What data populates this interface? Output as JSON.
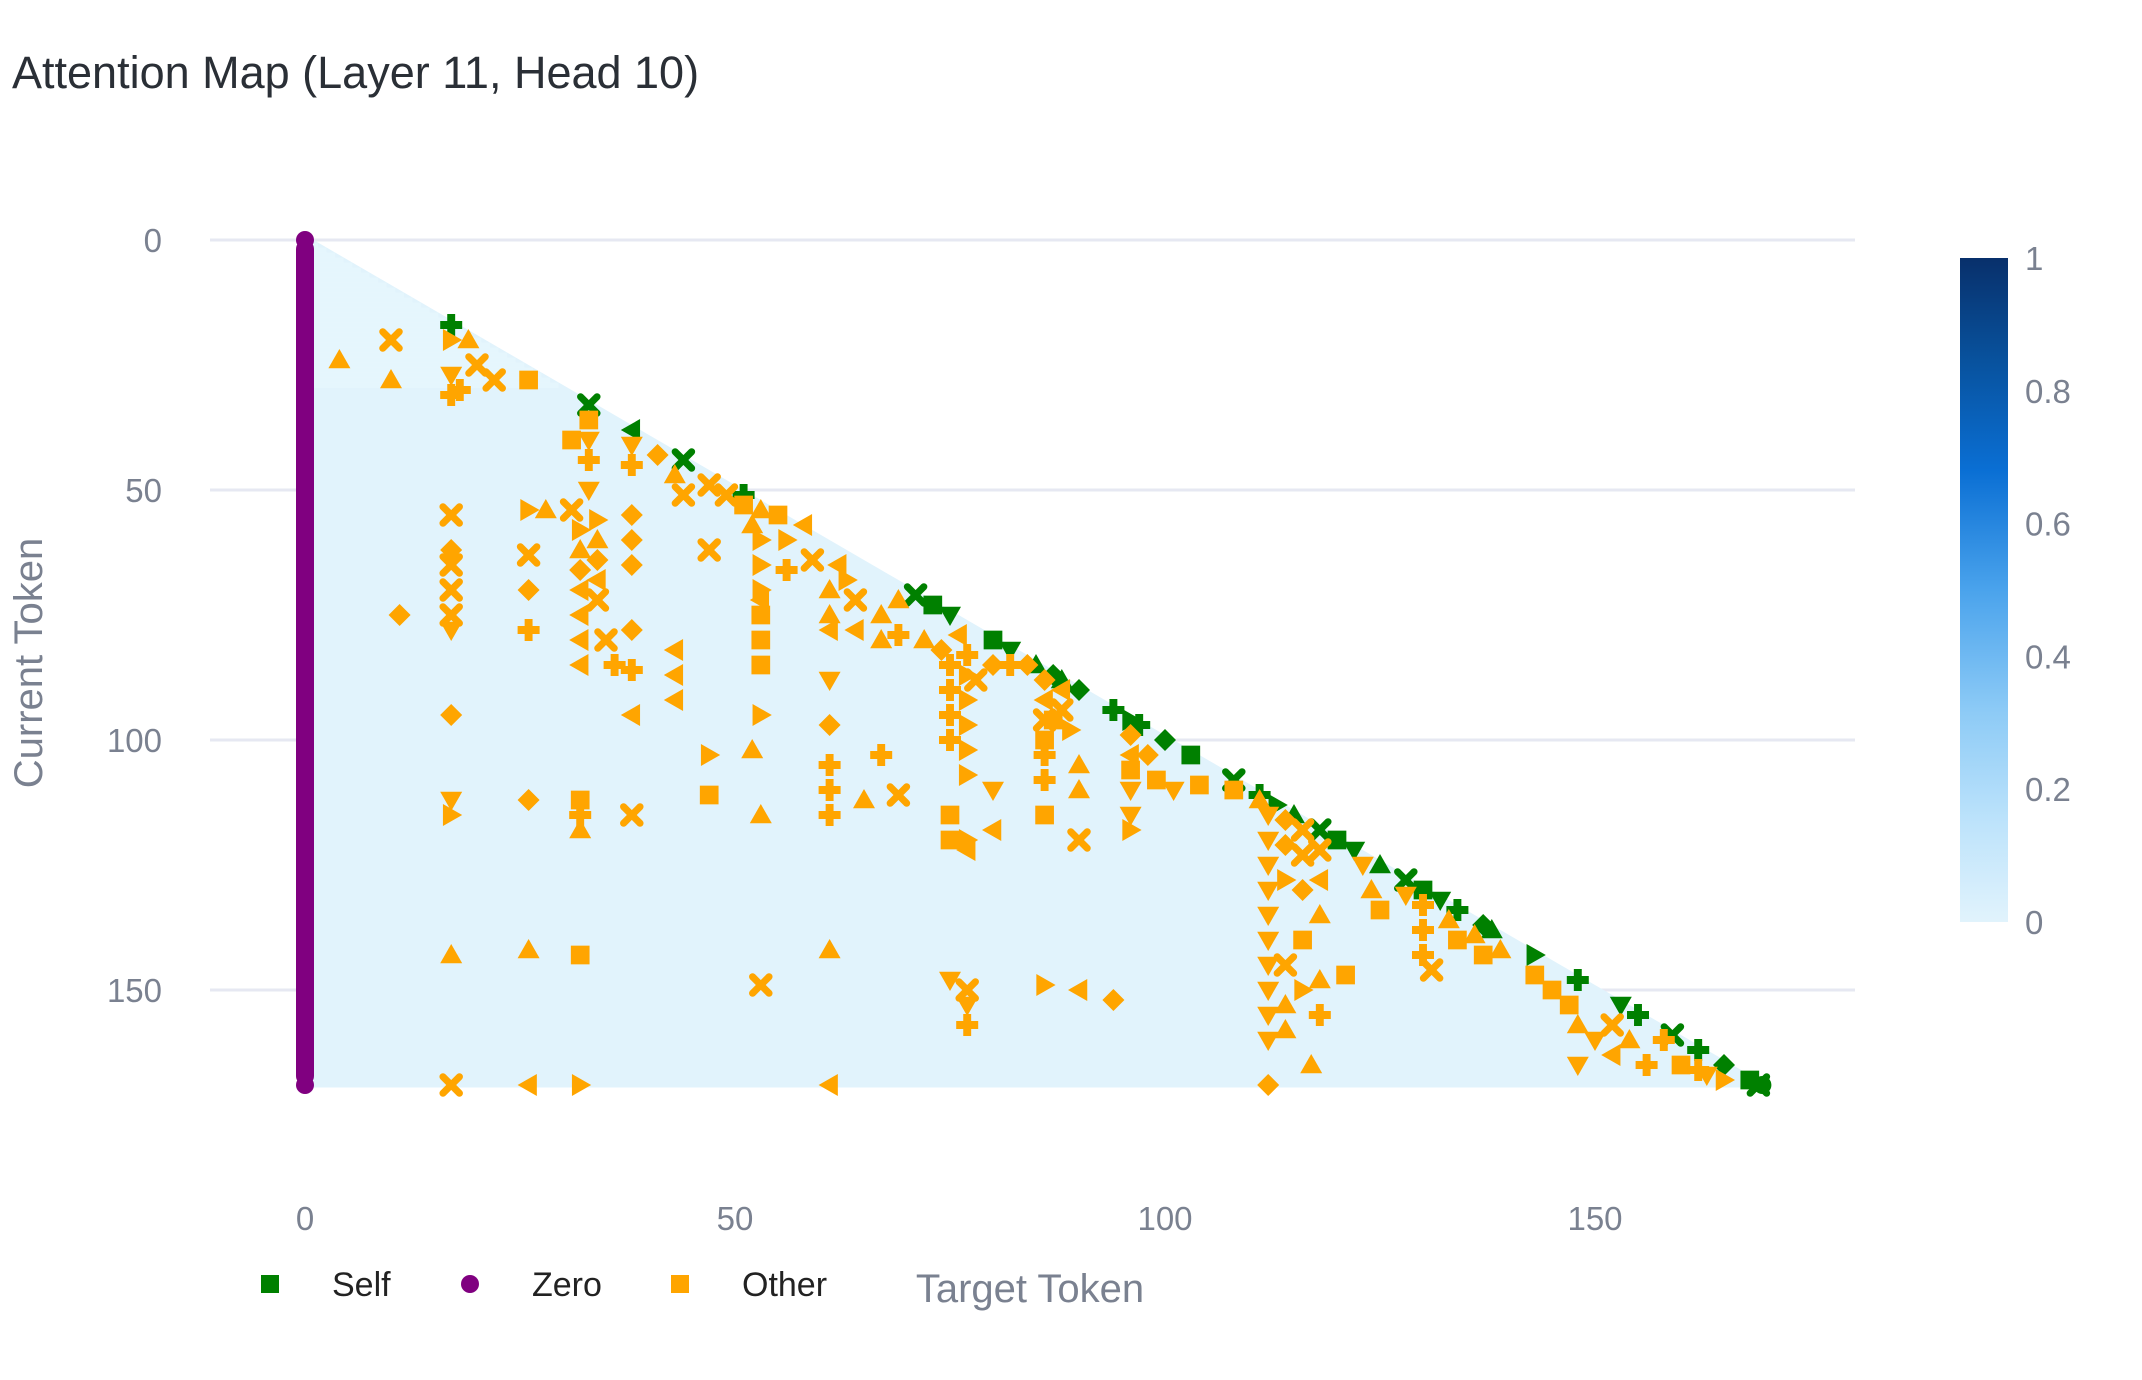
{
  "chart_data": {
    "type": "heatmap",
    "title": "Attention Map (Layer 11, Head 10)",
    "xlabel": "Target Token",
    "ylabel": "Current Token",
    "xlim": [
      -10,
      180
    ],
    "ylim": [
      0,
      170
    ],
    "y_reversed": true,
    "x_ticks": [
      0,
      50,
      100,
      150
    ],
    "y_ticks": [
      0,
      50,
      100,
      150
    ],
    "n_tokens": 170,
    "heatmap_mask": "lower-triangular",
    "colorscale": [
      "#e1f3fc",
      "#bde3fb",
      "#8ccaf6",
      "#4aa3ec",
      "#0a6fd4",
      "#08519c",
      "#08306b"
    ],
    "colorbar": {
      "min": 0,
      "max": 1,
      "ticks": [
        0,
        0.2,
        0.4,
        0.6,
        0.8,
        1
      ]
    },
    "grid": true,
    "legend_position": "bottom-left",
    "series": [
      {
        "name": "Self",
        "color": "#008000",
        "points": [
          [
            17,
            17
          ],
          [
            33,
            33
          ],
          [
            38,
            38
          ],
          [
            44,
            44
          ],
          [
            51,
            51
          ],
          [
            71,
            71
          ],
          [
            73,
            73
          ],
          [
            75,
            75
          ],
          [
            80,
            80
          ],
          [
            82,
            82
          ],
          [
            85,
            85
          ],
          [
            87,
            87
          ],
          [
            88,
            88
          ],
          [
            90,
            90
          ],
          [
            94,
            94
          ],
          [
            96,
            96
          ],
          [
            97,
            97
          ],
          [
            100,
            100
          ],
          [
            103,
            103
          ],
          [
            108,
            108
          ],
          [
            111,
            111
          ],
          [
            113,
            113
          ],
          [
            115,
            115
          ],
          [
            118,
            118
          ],
          [
            120,
            120
          ],
          [
            122,
            122
          ],
          [
            125,
            125
          ],
          [
            128,
            128
          ],
          [
            130,
            130
          ],
          [
            132,
            132
          ],
          [
            134,
            134
          ],
          [
            137,
            137
          ],
          [
            138,
            138
          ],
          [
            143,
            143
          ],
          [
            148,
            148
          ],
          [
            153,
            153
          ],
          [
            155,
            155
          ],
          [
            159,
            159
          ],
          [
            162,
            162
          ],
          [
            165,
            165
          ],
          [
            168,
            168
          ],
          [
            169,
            169
          ]
        ]
      },
      {
        "name": "Zero",
        "color": "#800080",
        "points": [
          [
            0,
            0
          ],
          [
            0,
            5
          ],
          [
            0,
            10
          ],
          [
            0,
            15
          ],
          [
            0,
            20
          ],
          [
            0,
            25
          ],
          [
            0,
            30
          ],
          [
            0,
            35
          ],
          [
            0,
            40
          ],
          [
            0,
            45
          ],
          [
            0,
            50
          ],
          [
            0,
            55
          ],
          [
            0,
            60
          ],
          [
            0,
            65
          ],
          [
            0,
            70
          ],
          [
            0,
            75
          ],
          [
            0,
            80
          ],
          [
            0,
            85
          ],
          [
            0,
            90
          ],
          [
            0,
            95
          ],
          [
            0,
            100
          ],
          [
            0,
            105
          ],
          [
            0,
            110
          ],
          [
            0,
            115
          ],
          [
            0,
            120
          ],
          [
            0,
            125
          ],
          [
            0,
            130
          ],
          [
            0,
            135
          ],
          [
            0,
            140
          ],
          [
            0,
            145
          ],
          [
            0,
            150
          ],
          [
            0,
            155
          ],
          [
            0,
            160
          ],
          [
            0,
            165
          ],
          [
            0,
            169
          ]
        ]
      },
      {
        "name": "Other",
        "color": "#FFA500",
        "points": [
          [
            4,
            24
          ],
          [
            10,
            20
          ],
          [
            10,
            28
          ],
          [
            11,
            75
          ],
          [
            17,
            20
          ],
          [
            17,
            27
          ],
          [
            17,
            31
          ],
          [
            17,
            55
          ],
          [
            17,
            62
          ],
          [
            17,
            65
          ],
          [
            17,
            70
          ],
          [
            17,
            75
          ],
          [
            17,
            78
          ],
          [
            17,
            95
          ],
          [
            17,
            112
          ],
          [
            17,
            115
          ],
          [
            17,
            143
          ],
          [
            17,
            169
          ],
          [
            18,
            30
          ],
          [
            19,
            20
          ],
          [
            20,
            25
          ],
          [
            22,
            28
          ],
          [
            26,
            28
          ],
          [
            26,
            54
          ],
          [
            26,
            63
          ],
          [
            26,
            70
          ],
          [
            26,
            78
          ],
          [
            26,
            112
          ],
          [
            26,
            142
          ],
          [
            26,
            169
          ],
          [
            28,
            54
          ],
          [
            31,
            40
          ],
          [
            31,
            54
          ],
          [
            32,
            58
          ],
          [
            32,
            62
          ],
          [
            32,
            66
          ],
          [
            32,
            70
          ],
          [
            32,
            75
          ],
          [
            32,
            80
          ],
          [
            32,
            85
          ],
          [
            32,
            112
          ],
          [
            32,
            115
          ],
          [
            32,
            118
          ],
          [
            32,
            143
          ],
          [
            32,
            169
          ],
          [
            33,
            36
          ],
          [
            33,
            40
          ],
          [
            33,
            44
          ],
          [
            33,
            50
          ],
          [
            34,
            56
          ],
          [
            34,
            60
          ],
          [
            34,
            64
          ],
          [
            34,
            68
          ],
          [
            34,
            72
          ],
          [
            35,
            80
          ],
          [
            36,
            85
          ],
          [
            38,
            41
          ],
          [
            38,
            45
          ],
          [
            38,
            55
          ],
          [
            38,
            60
          ],
          [
            38,
            65
          ],
          [
            38,
            78
          ],
          [
            38,
            86
          ],
          [
            38,
            95
          ],
          [
            38,
            115
          ],
          [
            41,
            43
          ],
          [
            43,
            47
          ],
          [
            43,
            82
          ],
          [
            43,
            87
          ],
          [
            43,
            92
          ],
          [
            44,
            51
          ],
          [
            47,
            49
          ],
          [
            47,
            62
          ],
          [
            47,
            103
          ],
          [
            47,
            111
          ],
          [
            49,
            51
          ],
          [
            51,
            53
          ],
          [
            52,
            57
          ],
          [
            52,
            102
          ],
          [
            53,
            54
          ],
          [
            53,
            60
          ],
          [
            53,
            65
          ],
          [
            53,
            70
          ],
          [
            53,
            72
          ],
          [
            53,
            75
          ],
          [
            53,
            80
          ],
          [
            53,
            85
          ],
          [
            53,
            95
          ],
          [
            53,
            115
          ],
          [
            53,
            149
          ],
          [
            55,
            55
          ],
          [
            56,
            60
          ],
          [
            56,
            66
          ],
          [
            58,
            57
          ],
          [
            59,
            64
          ],
          [
            61,
            70
          ],
          [
            61,
            75
          ],
          [
            61,
            78
          ],
          [
            61,
            88
          ],
          [
            61,
            97
          ],
          [
            61,
            105
          ],
          [
            61,
            110
          ],
          [
            61,
            115
          ],
          [
            61,
            142
          ],
          [
            61,
            169
          ],
          [
            62,
            65
          ],
          [
            63,
            68
          ],
          [
            64,
            72
          ],
          [
            64,
            78
          ],
          [
            65,
            112
          ],
          [
            67,
            75
          ],
          [
            67,
            80
          ],
          [
            67,
            103
          ],
          [
            69,
            72
          ],
          [
            69,
            79
          ],
          [
            69,
            111
          ],
          [
            72,
            80
          ],
          [
            74,
            82
          ],
          [
            75,
            85
          ],
          [
            75,
            90
          ],
          [
            75,
            95
          ],
          [
            75,
            100
          ],
          [
            75,
            115
          ],
          [
            75,
            120
          ],
          [
            75,
            148
          ],
          [
            76,
            79
          ],
          [
            77,
            83
          ],
          [
            77,
            87
          ],
          [
            77,
            92
          ],
          [
            77,
            97
          ],
          [
            77,
            102
          ],
          [
            77,
            107
          ],
          [
            77,
            120
          ],
          [
            77,
            122
          ],
          [
            77,
            150
          ],
          [
            77,
            153
          ],
          [
            77,
            157
          ],
          [
            78,
            88
          ],
          [
            80,
            85
          ],
          [
            80,
            110
          ],
          [
            80,
            118
          ],
          [
            82,
            85
          ],
          [
            84,
            85
          ],
          [
            86,
            88
          ],
          [
            86,
            92
          ],
          [
            86,
            96
          ],
          [
            86,
            100
          ],
          [
            86,
            103
          ],
          [
            86,
            108
          ],
          [
            86,
            115
          ],
          [
            86,
            149
          ],
          [
            87,
            96
          ],
          [
            88,
            90
          ],
          [
            88,
            94
          ],
          [
            89,
            98
          ],
          [
            90,
            105
          ],
          [
            90,
            110
          ],
          [
            90,
            120
          ],
          [
            90,
            150
          ],
          [
            94,
            152
          ],
          [
            96,
            99
          ],
          [
            96,
            103
          ],
          [
            96,
            106
          ],
          [
            96,
            110
          ],
          [
            96,
            115
          ],
          [
            96,
            118
          ],
          [
            98,
            103
          ],
          [
            99,
            108
          ],
          [
            101,
            110
          ],
          [
            104,
            109
          ],
          [
            108,
            110
          ],
          [
            111,
            112
          ],
          [
            112,
            115
          ],
          [
            112,
            120
          ],
          [
            112,
            125
          ],
          [
            112,
            130
          ],
          [
            112,
            135
          ],
          [
            112,
            140
          ],
          [
            112,
            145
          ],
          [
            112,
            150
          ],
          [
            112,
            155
          ],
          [
            112,
            160
          ],
          [
            112,
            169
          ],
          [
            114,
            116
          ],
          [
            114,
            121
          ],
          [
            114,
            128
          ],
          [
            114,
            145
          ],
          [
            114,
            153
          ],
          [
            114,
            158
          ],
          [
            116,
            118
          ],
          [
            116,
            123
          ],
          [
            116,
            130
          ],
          [
            116,
            140
          ],
          [
            116,
            150
          ],
          [
            117,
            165
          ],
          [
            118,
            122
          ],
          [
            118,
            128
          ],
          [
            118,
            135
          ],
          [
            118,
            148
          ],
          [
            118,
            155
          ],
          [
            121,
            147
          ],
          [
            123,
            125
          ],
          [
            124,
            130
          ],
          [
            125,
            134
          ],
          [
            128,
            131
          ],
          [
            130,
            133
          ],
          [
            130,
            138
          ],
          [
            130,
            143
          ],
          [
            131,
            146
          ],
          [
            133,
            136
          ],
          [
            134,
            140
          ],
          [
            136,
            139
          ],
          [
            137,
            143
          ],
          [
            139,
            142
          ],
          [
            143,
            147
          ],
          [
            145,
            150
          ],
          [
            147,
            153
          ],
          [
            148,
            157
          ],
          [
            148,
            165
          ],
          [
            150,
            160
          ],
          [
            152,
            157
          ],
          [
            152,
            163
          ],
          [
            154,
            160
          ],
          [
            156,
            165
          ],
          [
            158,
            160
          ],
          [
            160,
            165
          ],
          [
            162,
            166
          ],
          [
            163,
            167
          ],
          [
            165,
            168
          ]
        ]
      }
    ]
  }
}
